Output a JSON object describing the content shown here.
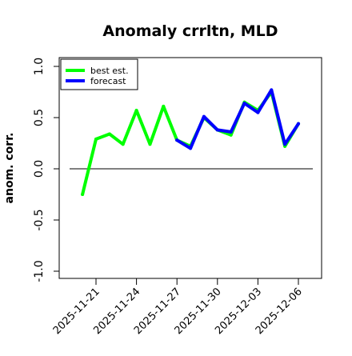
{
  "chart_data": {
    "type": "line",
    "title": "Anomaly crrltn, MLD",
    "xlabel": "",
    "ylabel": "anom. corr.",
    "ylim": [
      -1.0,
      1.0
    ],
    "yticks": [
      "-1.0",
      "-0.5",
      "0.0",
      "0.5",
      "1.0"
    ],
    "xticks": [
      "2025-11-21",
      "2025-11-24",
      "2025-11-27",
      "2025-11-30",
      "2025-12-03",
      "2025-12-06"
    ],
    "highlight_tick": "2025-11-27",
    "highlight_color": "#228b22",
    "grid": false,
    "legend": "top-left",
    "reference_line": 0.0,
    "series": [
      {
        "name": "best est.",
        "color": "#00ff00",
        "x": [
          "2025-11-20",
          "2025-11-21",
          "2025-11-22",
          "2025-11-23",
          "2025-11-24",
          "2025-11-25",
          "2025-11-26",
          "2025-11-27",
          "2025-11-28",
          "2025-11-29",
          "2025-11-30",
          "2025-12-01",
          "2025-12-02",
          "2025-12-03",
          "2025-12-04",
          "2025-12-05",
          "2025-12-06"
        ],
        "values": [
          -0.25,
          0.29,
          0.34,
          0.24,
          0.57,
          0.24,
          0.61,
          0.28,
          0.22,
          0.5,
          0.38,
          0.33,
          0.65,
          0.57,
          0.75,
          0.22,
          0.44
        ]
      },
      {
        "name": "forecast",
        "color": "#0000ff",
        "x": [
          "2025-11-27",
          "2025-11-28",
          "2025-11-29",
          "2025-11-30",
          "2025-12-01",
          "2025-12-02",
          "2025-12-03",
          "2025-12-04",
          "2025-12-05",
          "2025-12-06"
        ],
        "values": [
          0.28,
          0.2,
          0.51,
          0.38,
          0.36,
          0.64,
          0.55,
          0.77,
          0.24,
          0.44
        ]
      }
    ]
  }
}
